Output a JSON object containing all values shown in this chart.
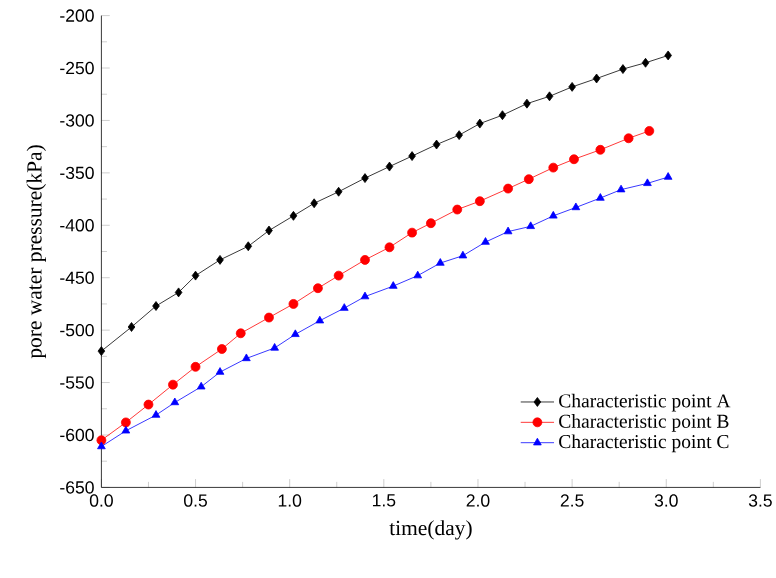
{
  "chart_data": {
    "type": "line",
    "xlabel": "time(day)",
    "ylabel": "pore water pressure(kPa)",
    "xlim": [
      0,
      3.5
    ],
    "ylim": [
      -650,
      -200
    ],
    "xticks": [
      {
        "value": 0,
        "label": "0.0"
      },
      0.5,
      {
        "value": 1,
        "label": "1.0"
      },
      1.5,
      {
        "value": 2,
        "label": "2.0"
      },
      2.5,
      {
        "value": 3,
        "label": "3.0"
      },
      3.5
    ],
    "yticks": [
      -650,
      -600,
      -550,
      -500,
      -450,
      -400,
      -350,
      -300,
      -250,
      -200
    ],
    "grid": false,
    "legend": "bottom right",
    "line_style": "solid",
    "series": [
      {
        "name": "Characteristic point A",
        "color": "#000000",
        "marker": "diamond",
        "x": [
          0,
          0.16,
          0.29,
          0.41,
          0.5,
          0.63,
          0.78,
          0.89,
          1.02,
          1.13,
          1.26,
          1.4,
          1.53,
          1.65,
          1.78,
          1.9,
          2.01,
          2.13,
          2.26,
          2.38,
          2.5,
          2.63,
          2.77,
          2.89,
          3.01
        ],
        "values": [
          -520,
          -497,
          -477,
          -464,
          -448,
          -433,
          -420,
          -405,
          -391,
          -379,
          -368,
          -355,
          -344,
          -334,
          -323,
          -314,
          -303,
          -295,
          -284,
          -277,
          -268,
          -260,
          -251,
          -245,
          -238
        ]
      },
      {
        "name": "Characteristic point B",
        "color": "#ff0000",
        "marker": "circle",
        "x": [
          0,
          0.13,
          0.25,
          0.38,
          0.5,
          0.64,
          0.74,
          0.89,
          1.02,
          1.15,
          1.26,
          1.4,
          1.53,
          1.65,
          1.75,
          1.89,
          2.01,
          2.16,
          2.27,
          2.4,
          2.51,
          2.65,
          2.8,
          2.91
        ],
        "values": [
          -605,
          -588,
          -571,
          -552,
          -535,
          -518,
          -503,
          -488,
          -475,
          -460,
          -448,
          -433,
          -421,
          -407,
          -398,
          -385,
          -377,
          -365,
          -356,
          -345,
          -337,
          -328,
          -317,
          -310
        ]
      },
      {
        "name": "Characteristic point C",
        "color": "#0000ff",
        "marker": "triangle",
        "x": [
          0,
          0.13,
          0.29,
          0.39,
          0.53,
          0.63,
          0.77,
          0.92,
          1.03,
          1.16,
          1.29,
          1.4,
          1.55,
          1.68,
          1.8,
          1.92,
          2.04,
          2.16,
          2.28,
          2.4,
          2.52,
          2.65,
          2.76,
          2.9,
          3.01
        ],
        "values": [
          -611,
          -596,
          -581,
          -569,
          -554,
          -540,
          -527,
          -517,
          -504,
          -491,
          -479,
          -468,
          -458,
          -448,
          -436,
          -429,
          -416,
          -406,
          -401,
          -391,
          -383,
          -374,
          -366,
          -360,
          -354
        ]
      }
    ]
  }
}
